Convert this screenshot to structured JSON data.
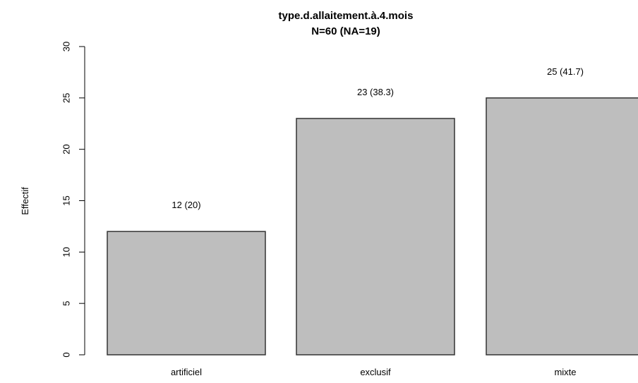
{
  "chart_data": {
    "type": "bar",
    "title": "type.d.allaitement.à.4.mois",
    "subtitle": "N=60 (NA=19)",
    "xlabel": "",
    "ylabel": "Effectif",
    "categories": [
      "artificiel",
      "exclusif",
      "mixte"
    ],
    "values": [
      12,
      23,
      25
    ],
    "bar_labels": [
      "12 (20)",
      "23 (38.3)",
      "25 (41.7)"
    ],
    "ylim": [
      0,
      30
    ],
    "yticks": [
      0,
      5,
      10,
      15,
      20,
      25,
      30
    ],
    "grid": false,
    "legend": "none",
    "bar_color": "#bebebe",
    "bar_border_color": "#333333"
  }
}
